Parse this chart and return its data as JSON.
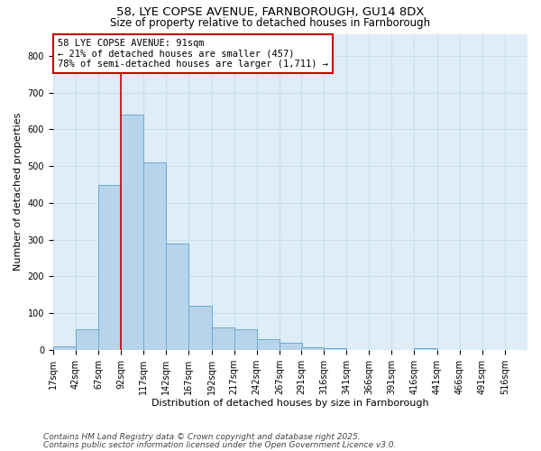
{
  "title_line1": "58, LYE COPSE AVENUE, FARNBOROUGH, GU14 8DX",
  "title_line2": "Size of property relative to detached houses in Farnborough",
  "xlabel": "Distribution of detached houses by size in Farnborough",
  "ylabel": "Number of detached properties",
  "footnote1": "Contains HM Land Registry data © Crown copyright and database right 2025.",
  "footnote2": "Contains public sector information licensed under the Open Government Licence v3.0.",
  "annotation_line1": "58 LYE COPSE AVENUE: 91sqm",
  "annotation_line2": "← 21% of detached houses are smaller (457)",
  "annotation_line3": "78% of semi-detached houses are larger (1,711) →",
  "bar_color": "#b8d4ea",
  "bar_edge_color": "#6aaad4",
  "vline_color": "#cc0000",
  "grid_color": "#c8dff0",
  "background_color": "#deedf8",
  "annotation_box_color": "#ffffff",
  "annotation_box_edge": "#cc0000",
  "categories": [
    "17sqm",
    "42sqm",
    "67sqm",
    "92sqm",
    "117sqm",
    "142sqm",
    "167sqm",
    "192sqm",
    "217sqm",
    "242sqm",
    "267sqm",
    "291sqm",
    "316sqm",
    "341sqm",
    "366sqm",
    "391sqm",
    "416sqm",
    "441sqm",
    "466sqm",
    "491sqm",
    "516sqm"
  ],
  "bin_starts": [
    17,
    42,
    67,
    92,
    117,
    142,
    167,
    192,
    217,
    242,
    267,
    291,
    316,
    341,
    366,
    391,
    416,
    441,
    466,
    491,
    516
  ],
  "bin_width": 25,
  "values": [
    10,
    55,
    450,
    640,
    510,
    290,
    120,
    60,
    55,
    30,
    20,
    6,
    5,
    0,
    0,
    0,
    4,
    0,
    0,
    0,
    0
  ],
  "ylim": [
    0,
    860
  ],
  "yticks": [
    0,
    100,
    200,
    300,
    400,
    500,
    600,
    700,
    800
  ],
  "vline_x": 92,
  "title_fontsize1": 9.5,
  "title_fontsize2": 8.5,
  "axis_label_fontsize": 8,
  "tick_fontsize": 7,
  "annotation_fontsize": 7.5,
  "footnote_fontsize": 6.5
}
